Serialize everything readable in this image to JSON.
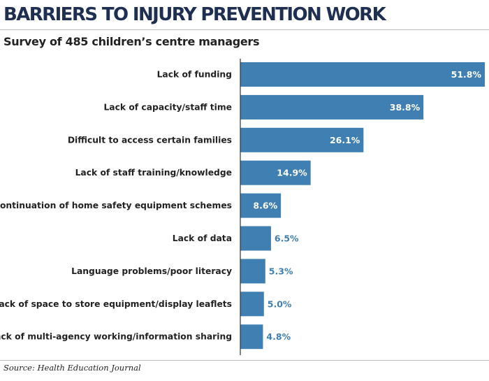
{
  "header": {
    "title": "BARRIERS TO INJURY PREVENTION WORK",
    "subtitle": "Survey of 485 children’s centre managers"
  },
  "footer": {
    "source": "Source: Health Education Journal"
  },
  "chart_data": {
    "type": "bar",
    "orientation": "horizontal",
    "title": "BARRIERS TO INJURY PREVENTION WORK",
    "subtitle": "Survey of 485 children’s centre managers",
    "xlabel": "",
    "ylabel": "",
    "xlim": [
      0,
      51.8
    ],
    "grid": false,
    "categories": [
      "Lack of funding",
      "Lack of capacity/staff time",
      "Difficult to access certain families",
      "Lack of staff training/knowledge",
      "Discontinuation of home safety equipment schemes",
      "Lack of data",
      "Language problems/poor literacy",
      "Lack of space to store equipment/display leaflets",
      "Lack of multi-agency working/information sharing"
    ],
    "values": [
      51.8,
      38.8,
      26.1,
      14.9,
      8.6,
      6.5,
      5.3,
      5.0,
      4.8
    ],
    "value_labels": [
      "51.8%",
      "38.8%",
      "26.1%",
      "14.9%",
      "8.6%",
      "6.5%",
      "5.3%",
      "5.0%",
      "4.8%"
    ],
    "colors": {
      "bar": "#3f7fb1",
      "label_inside": "#ffffff",
      "label_outside": "#3f7fb1",
      "axis": "#333333",
      "title": "#1f2f52"
    }
  }
}
